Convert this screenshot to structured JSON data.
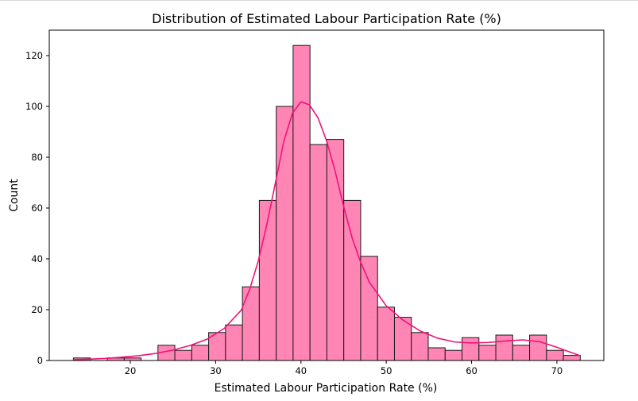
{
  "chart_data": {
    "type": "bar",
    "title": "Distribution of Estimated Labour Participation Rate (%)",
    "xlabel": "Estimated Labour Participation Rate (%)",
    "ylabel": "Count",
    "xlim": [
      10.5,
      75.5
    ],
    "ylim": [
      0,
      130
    ],
    "xticks": [
      20,
      30,
      40,
      50,
      60,
      70
    ],
    "yticks": [
      0,
      20,
      40,
      60,
      80,
      100,
      120
    ],
    "grid": false,
    "legend": "none",
    "bin_edges": [
      13.33,
      15.32,
      17.3,
      19.28,
      21.26,
      23.24,
      25.22,
      27.2,
      29.18,
      31.16,
      33.14,
      35.12,
      37.1,
      39.08,
      41.06,
      43.04,
      45.02,
      47.0,
      48.98,
      50.96,
      52.94,
      54.92,
      56.9,
      58.88,
      60.86,
      62.84,
      64.82,
      66.8,
      68.78,
      70.76,
      72.74
    ],
    "counts": [
      1,
      0,
      1,
      1,
      0,
      6,
      4,
      6,
      11,
      14,
      29,
      63,
      100,
      124,
      85,
      87,
      63,
      41,
      21,
      17,
      11,
      5,
      4,
      9,
      6,
      10,
      6,
      10,
      4,
      2
    ],
    "kde": {
      "x": [
        13.3,
        15,
        17,
        19,
        21,
        23,
        25,
        27,
        29,
        31,
        33,
        34,
        35,
        36,
        37,
        38,
        39,
        40,
        41,
        42,
        43,
        44,
        45,
        46,
        47,
        48,
        50,
        52,
        54,
        56,
        58,
        60,
        62,
        64,
        66,
        68,
        70,
        72.7
      ],
      "y": [
        0.3,
        0.5,
        0.8,
        1.3,
        1.9,
        2.8,
        4.1,
        5.9,
        8.4,
        12.6,
        19.8,
        28.1,
        39.2,
        53.5,
        69.8,
        86.4,
        97.3,
        101.8,
        100.6,
        95.5,
        86.5,
        74.6,
        60.7,
        48.2,
        38.7,
        30.9,
        21.5,
        15.8,
        11.6,
        8.8,
        7.3,
        6.9,
        7.1,
        7.7,
        8.1,
        7.4,
        5.2,
        1.9
      ]
    },
    "colors": {
      "bar_fill": "#ff85b4",
      "bar_edge": "#1a1a1a",
      "kde_line": "#f01478"
    }
  }
}
